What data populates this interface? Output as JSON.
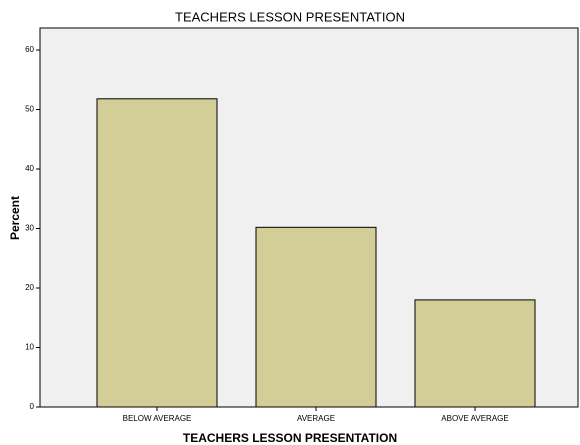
{
  "chart_data": {
    "type": "bar",
    "title": "TEACHERS LESSON PRESENTATION",
    "x_label": "TEACHERS LESSON PRESENTATION",
    "y_label": "Percent",
    "categories": [
      "BELOW AVERAGE",
      "AVERAGE",
      "ABOVE AVERAGE"
    ],
    "values": [
      51.8,
      30.2,
      18.0
    ],
    "color": "#d3ce97",
    "ylim": [
      0,
      63.7
    ],
    "yticks": [
      0,
      10,
      20,
      30,
      40,
      50,
      60
    ],
    "grid": false
  }
}
